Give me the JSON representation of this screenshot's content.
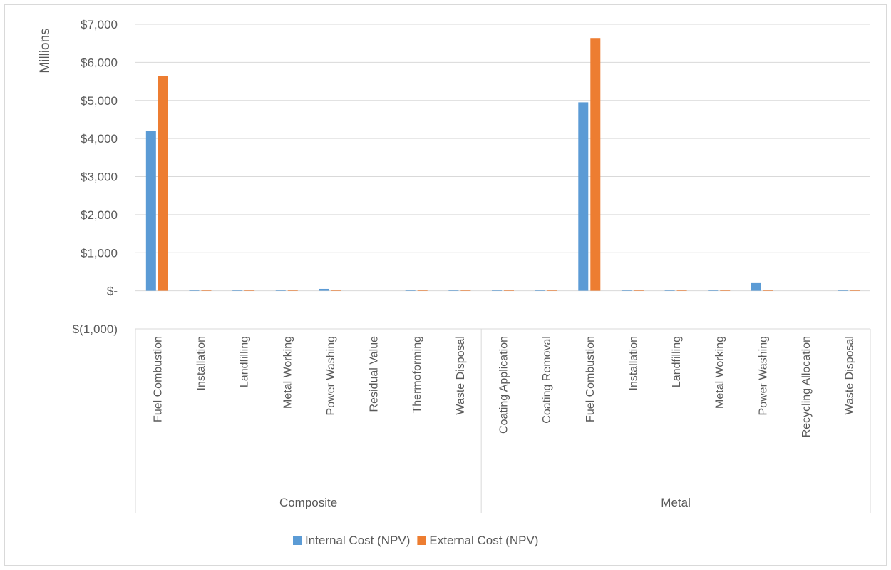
{
  "chart_data": {
    "type": "bar",
    "ylabel": "Millions",
    "ylim": [
      -1000,
      7000
    ],
    "yticks": [
      -1000,
      0,
      1000,
      2000,
      3000,
      4000,
      5000,
      6000,
      7000
    ],
    "ytick_labels": [
      "$(1,000)",
      "$-",
      "$1,000",
      "$2,000",
      "$3,000",
      "$4,000",
      "$5,000",
      "$6,000",
      "$7,000"
    ],
    "grid": true,
    "legend_position": "bottom",
    "groups": [
      {
        "name": "Composite",
        "categories": [
          "Fuel Combustion",
          "Installation",
          "Landfilling",
          "Metal Working",
          "Power Washing",
          "Residual Value",
          "Thermoforming",
          "Waste Disposal"
        ]
      },
      {
        "name": "Metal",
        "categories": [
          "Coating Application",
          "Coating Removal",
          "Fuel Combustion",
          "Installation",
          "Landfilling",
          "Metal Working",
          "Power Washing",
          "Recycling Allocation",
          "Waste Disposal"
        ]
      }
    ],
    "series": [
      {
        "name": "Internal Cost (NPV)",
        "color": "#5b9bd5",
        "values": [
          4200,
          5,
          5,
          5,
          50,
          0,
          5,
          5,
          5,
          5,
          4950,
          5,
          5,
          5,
          220,
          0,
          20
        ]
      },
      {
        "name": "External Cost (NPV)",
        "color": "#ed7d31",
        "values": [
          5640,
          5,
          5,
          5,
          5,
          0,
          5,
          5,
          5,
          5,
          6640,
          5,
          5,
          5,
          15,
          0,
          5
        ]
      }
    ]
  }
}
